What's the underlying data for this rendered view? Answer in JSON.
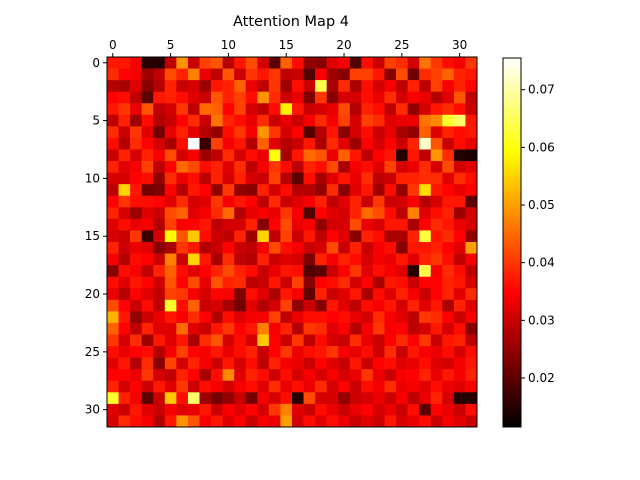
{
  "chart_data": {
    "type": "heatmap",
    "title": "Attention Map 4",
    "xlabel": "",
    "ylabel": "",
    "rows": 32,
    "cols": 32,
    "x_ticks": [
      0,
      5,
      10,
      15,
      20,
      25,
      30
    ],
    "y_ticks": [
      0,
      5,
      10,
      15,
      20,
      25,
      30
    ],
    "colormap": "hot",
    "colormap_stops": [
      "#000000",
      "#ff0000",
      "#ffff00",
      "#ffffff"
    ],
    "vmin": 0.0115,
    "vmax": 0.0755,
    "colorbar_ticks": [
      0.02,
      0.03,
      0.04,
      0.05,
      0.06,
      0.07
    ],
    "colorbar_tick_labels": [
      "0.02",
      "0.03",
      "0.04",
      "0.05",
      "0.06",
      "0.07"
    ],
    "values": [
      [
        0.037,
        0.037,
        0.034,
        0.015,
        0.015,
        0.029,
        0.049,
        0.03,
        0.041,
        0.043,
        0.028,
        0.037,
        0.042,
        0.031,
        0.02,
        0.044,
        0.036,
        0.025,
        0.024,
        0.032,
        0.034,
        0.019,
        0.036,
        0.03,
        0.041,
        0.039,
        0.031,
        0.046,
        0.04,
        0.036,
        0.034,
        0.04
      ],
      [
        0.039,
        0.035,
        0.034,
        0.026,
        0.029,
        0.042,
        0.038,
        0.047,
        0.033,
        0.029,
        0.043,
        0.03,
        0.04,
        0.037,
        0.04,
        0.029,
        0.03,
        0.019,
        0.034,
        0.026,
        0.024,
        0.041,
        0.041,
        0.037,
        0.024,
        0.042,
        0.022,
        0.039,
        0.041,
        0.044,
        0.038,
        0.037
      ],
      [
        0.028,
        0.027,
        0.032,
        0.024,
        0.028,
        0.038,
        0.03,
        0.031,
        0.026,
        0.037,
        0.038,
        0.044,
        0.033,
        0.029,
        0.04,
        0.026,
        0.036,
        0.03,
        0.064,
        0.027,
        0.039,
        0.027,
        0.036,
        0.031,
        0.034,
        0.029,
        0.038,
        0.029,
        0.041,
        0.034,
        0.038,
        0.035
      ],
      [
        0.035,
        0.036,
        0.029,
        0.02,
        0.037,
        0.038,
        0.036,
        0.032,
        0.03,
        0.043,
        0.038,
        0.041,
        0.036,
        0.049,
        0.039,
        0.03,
        0.033,
        0.023,
        0.04,
        0.024,
        0.031,
        0.031,
        0.036,
        0.033,
        0.039,
        0.031,
        0.034,
        0.033,
        0.028,
        0.032,
        0.043,
        0.029
      ],
      [
        0.037,
        0.04,
        0.033,
        0.043,
        0.029,
        0.031,
        0.04,
        0.029,
        0.045,
        0.044,
        0.035,
        0.041,
        0.031,
        0.029,
        0.036,
        0.058,
        0.037,
        0.03,
        0.031,
        0.033,
        0.042,
        0.028,
        0.038,
        0.036,
        0.029,
        0.039,
        0.025,
        0.031,
        0.037,
        0.039,
        0.036,
        0.03
      ],
      [
        0.029,
        0.038,
        0.026,
        0.036,
        0.028,
        0.03,
        0.035,
        0.039,
        0.03,
        0.046,
        0.038,
        0.036,
        0.033,
        0.039,
        0.03,
        0.033,
        0.03,
        0.034,
        0.039,
        0.034,
        0.041,
        0.031,
        0.041,
        0.039,
        0.032,
        0.033,
        0.033,
        0.046,
        0.048,
        0.062,
        0.066,
        0.037
      ],
      [
        0.039,
        0.03,
        0.04,
        0.032,
        0.022,
        0.033,
        0.038,
        0.032,
        0.028,
        0.025,
        0.036,
        0.04,
        0.034,
        0.049,
        0.04,
        0.031,
        0.035,
        0.019,
        0.028,
        0.037,
        0.024,
        0.031,
        0.036,
        0.03,
        0.033,
        0.027,
        0.025,
        0.044,
        0.032,
        0.038,
        0.036,
        0.037
      ],
      [
        0.036,
        0.028,
        0.039,
        0.035,
        0.031,
        0.027,
        0.036,
        0.076,
        0.017,
        0.041,
        0.034,
        0.037,
        0.028,
        0.044,
        0.032,
        0.028,
        0.03,
        0.037,
        0.027,
        0.039,
        0.032,
        0.026,
        0.035,
        0.031,
        0.035,
        0.03,
        0.038,
        0.072,
        0.043,
        0.03,
        0.036,
        0.033
      ],
      [
        0.03,
        0.038,
        0.031,
        0.038,
        0.034,
        0.042,
        0.031,
        0.034,
        0.026,
        0.029,
        0.039,
        0.031,
        0.036,
        0.033,
        0.06,
        0.027,
        0.037,
        0.045,
        0.043,
        0.033,
        0.044,
        0.037,
        0.029,
        0.035,
        0.037,
        0.015,
        0.037,
        0.029,
        0.049,
        0.039,
        0.015,
        0.014
      ],
      [
        0.038,
        0.032,
        0.034,
        0.041,
        0.029,
        0.035,
        0.045,
        0.042,
        0.036,
        0.038,
        0.032,
        0.039,
        0.029,
        0.034,
        0.04,
        0.036,
        0.029,
        0.038,
        0.036,
        0.042,
        0.027,
        0.034,
        0.036,
        0.032,
        0.041,
        0.031,
        0.033,
        0.039,
        0.031,
        0.042,
        0.031,
        0.032
      ],
      [
        0.031,
        0.031,
        0.035,
        0.036,
        0.025,
        0.039,
        0.033,
        0.036,
        0.029,
        0.038,
        0.031,
        0.038,
        0.031,
        0.03,
        0.041,
        0.028,
        0.02,
        0.036,
        0.027,
        0.032,
        0.037,
        0.033,
        0.039,
        0.029,
        0.03,
        0.038,
        0.038,
        0.039,
        0.039,
        0.032,
        0.039,
        0.036
      ],
      [
        0.029,
        0.055,
        0.037,
        0.022,
        0.023,
        0.035,
        0.028,
        0.037,
        0.035,
        0.025,
        0.04,
        0.025,
        0.024,
        0.038,
        0.031,
        0.036,
        0.028,
        0.028,
        0.025,
        0.039,
        0.024,
        0.032,
        0.037,
        0.026,
        0.036,
        0.025,
        0.04,
        0.056,
        0.037,
        0.035,
        0.033,
        0.035
      ],
      [
        0.035,
        0.04,
        0.036,
        0.036,
        0.035,
        0.032,
        0.039,
        0.031,
        0.032,
        0.04,
        0.034,
        0.037,
        0.035,
        0.029,
        0.039,
        0.03,
        0.032,
        0.034,
        0.038,
        0.029,
        0.032,
        0.038,
        0.03,
        0.04,
        0.03,
        0.031,
        0.034,
        0.028,
        0.031,
        0.037,
        0.037,
        0.02
      ],
      [
        0.038,
        0.031,
        0.026,
        0.032,
        0.03,
        0.042,
        0.044,
        0.032,
        0.034,
        0.039,
        0.045,
        0.028,
        0.033,
        0.034,
        0.033,
        0.04,
        0.034,
        0.019,
        0.035,
        0.032,
        0.031,
        0.038,
        0.045,
        0.042,
        0.036,
        0.029,
        0.047,
        0.032,
        0.036,
        0.038,
        0.026,
        0.031
      ],
      [
        0.032,
        0.036,
        0.033,
        0.034,
        0.028,
        0.041,
        0.034,
        0.035,
        0.037,
        0.029,
        0.031,
        0.031,
        0.038,
        0.024,
        0.035,
        0.042,
        0.033,
        0.034,
        0.025,
        0.031,
        0.031,
        0.042,
        0.033,
        0.031,
        0.037,
        0.037,
        0.027,
        0.035,
        0.039,
        0.037,
        0.033,
        0.031
      ],
      [
        0.031,
        0.03,
        0.04,
        0.017,
        0.031,
        0.059,
        0.043,
        0.054,
        0.036,
        0.03,
        0.029,
        0.038,
        0.026,
        0.055,
        0.029,
        0.041,
        0.03,
        0.037,
        0.029,
        0.035,
        0.032,
        0.024,
        0.038,
        0.036,
        0.027,
        0.027,
        0.038,
        0.063,
        0.037,
        0.039,
        0.035,
        0.025
      ],
      [
        0.038,
        0.03,
        0.033,
        0.032,
        0.024,
        0.027,
        0.04,
        0.037,
        0.028,
        0.03,
        0.035,
        0.03,
        0.029,
        0.034,
        0.042,
        0.036,
        0.034,
        0.03,
        0.031,
        0.042,
        0.03,
        0.038,
        0.03,
        0.034,
        0.036,
        0.024,
        0.037,
        0.037,
        0.038,
        0.035,
        0.032,
        0.05
      ],
      [
        0.034,
        0.028,
        0.036,
        0.035,
        0.03,
        0.047,
        0.03,
        0.055,
        0.037,
        0.027,
        0.039,
        0.029,
        0.028,
        0.038,
        0.03,
        0.032,
        0.031,
        0.023,
        0.038,
        0.034,
        0.038,
        0.036,
        0.031,
        0.034,
        0.033,
        0.037,
        0.032,
        0.038,
        0.04,
        0.036,
        0.029,
        0.034
      ],
      [
        0.024,
        0.036,
        0.034,
        0.029,
        0.038,
        0.044,
        0.036,
        0.032,
        0.035,
        0.038,
        0.042,
        0.038,
        0.036,
        0.03,
        0.033,
        0.037,
        0.036,
        0.019,
        0.02,
        0.03,
        0.035,
        0.04,
        0.032,
        0.036,
        0.034,
        0.032,
        0.015,
        0.064,
        0.034,
        0.039,
        0.036,
        0.029
      ],
      [
        0.036,
        0.032,
        0.037,
        0.035,
        0.03,
        0.043,
        0.035,
        0.042,
        0.033,
        0.043,
        0.038,
        0.039,
        0.029,
        0.03,
        0.037,
        0.03,
        0.041,
        0.024,
        0.035,
        0.036,
        0.039,
        0.031,
        0.035,
        0.027,
        0.037,
        0.036,
        0.03,
        0.035,
        0.035,
        0.038,
        0.037,
        0.031
      ],
      [
        0.033,
        0.028,
        0.035,
        0.032,
        0.029,
        0.041,
        0.04,
        0.034,
        0.031,
        0.035,
        0.035,
        0.023,
        0.036,
        0.032,
        0.027,
        0.037,
        0.034,
        0.02,
        0.038,
        0.03,
        0.032,
        0.037,
        0.027,
        0.036,
        0.032,
        0.038,
        0.034,
        0.03,
        0.035,
        0.038,
        0.032,
        0.039
      ],
      [
        0.042,
        0.035,
        0.03,
        0.036,
        0.029,
        0.062,
        0.036,
        0.044,
        0.03,
        0.031,
        0.027,
        0.022,
        0.032,
        0.028,
        0.031,
        0.041,
        0.025,
        0.03,
        0.024,
        0.037,
        0.032,
        0.029,
        0.036,
        0.034,
        0.037,
        0.031,
        0.038,
        0.032,
        0.037,
        0.027,
        0.038,
        0.032
      ],
      [
        0.052,
        0.037,
        0.025,
        0.03,
        0.033,
        0.037,
        0.034,
        0.039,
        0.035,
        0.028,
        0.036,
        0.032,
        0.034,
        0.034,
        0.041,
        0.029,
        0.033,
        0.036,
        0.036,
        0.035,
        0.036,
        0.033,
        0.031,
        0.039,
        0.034,
        0.032,
        0.029,
        0.04,
        0.039,
        0.035,
        0.03,
        0.034
      ],
      [
        0.044,
        0.035,
        0.029,
        0.038,
        0.032,
        0.032,
        0.045,
        0.032,
        0.03,
        0.037,
        0.04,
        0.035,
        0.037,
        0.047,
        0.034,
        0.038,
        0.028,
        0.04,
        0.039,
        0.032,
        0.035,
        0.028,
        0.034,
        0.04,
        0.034,
        0.035,
        0.029,
        0.031,
        0.037,
        0.031,
        0.036,
        0.024
      ],
      [
        0.04,
        0.031,
        0.039,
        0.026,
        0.037,
        0.032,
        0.037,
        0.027,
        0.039,
        0.043,
        0.031,
        0.036,
        0.031,
        0.054,
        0.035,
        0.03,
        0.04,
        0.029,
        0.036,
        0.031,
        0.03,
        0.039,
        0.033,
        0.03,
        0.035,
        0.039,
        0.035,
        0.04,
        0.03,
        0.037,
        0.038,
        0.029
      ],
      [
        0.036,
        0.033,
        0.035,
        0.036,
        0.028,
        0.034,
        0.041,
        0.035,
        0.034,
        0.037,
        0.033,
        0.036,
        0.038,
        0.03,
        0.035,
        0.04,
        0.033,
        0.036,
        0.037,
        0.04,
        0.034,
        0.033,
        0.036,
        0.03,
        0.039,
        0.03,
        0.037,
        0.034,
        0.033,
        0.036,
        0.031,
        0.036
      ],
      [
        0.032,
        0.037,
        0.028,
        0.039,
        0.024,
        0.041,
        0.031,
        0.038,
        0.034,
        0.03,
        0.037,
        0.031,
        0.036,
        0.029,
        0.038,
        0.034,
        0.033,
        0.03,
        0.035,
        0.032,
        0.03,
        0.037,
        0.03,
        0.035,
        0.036,
        0.032,
        0.033,
        0.036,
        0.032,
        0.031,
        0.034,
        0.037
      ],
      [
        0.035,
        0.035,
        0.033,
        0.04,
        0.031,
        0.029,
        0.038,
        0.035,
        0.027,
        0.036,
        0.048,
        0.032,
        0.038,
        0.036,
        0.03,
        0.036,
        0.031,
        0.034,
        0.031,
        0.034,
        0.031,
        0.033,
        0.04,
        0.033,
        0.03,
        0.034,
        0.035,
        0.038,
        0.033,
        0.037,
        0.034,
        0.038
      ],
      [
        0.038,
        0.031,
        0.035,
        0.03,
        0.037,
        0.032,
        0.04,
        0.03,
        0.036,
        0.034,
        0.031,
        0.034,
        0.036,
        0.032,
        0.039,
        0.033,
        0.036,
        0.033,
        0.039,
        0.031,
        0.035,
        0.03,
        0.036,
        0.034,
        0.039,
        0.033,
        0.034,
        0.032,
        0.036,
        0.033,
        0.032,
        0.034
      ],
      [
        0.062,
        0.038,
        0.034,
        0.02,
        0.03,
        0.054,
        0.036,
        0.066,
        0.026,
        0.022,
        0.025,
        0.03,
        0.022,
        0.034,
        0.031,
        0.036,
        0.015,
        0.042,
        0.031,
        0.031,
        0.025,
        0.03,
        0.031,
        0.033,
        0.03,
        0.034,
        0.029,
        0.033,
        0.038,
        0.031,
        0.015,
        0.015
      ],
      [
        0.032,
        0.03,
        0.037,
        0.032,
        0.03,
        0.034,
        0.032,
        0.033,
        0.037,
        0.03,
        0.034,
        0.032,
        0.035,
        0.031,
        0.04,
        0.047,
        0.032,
        0.03,
        0.036,
        0.033,
        0.03,
        0.033,
        0.035,
        0.031,
        0.033,
        0.03,
        0.036,
        0.02,
        0.035,
        0.033,
        0.03,
        0.036
      ],
      [
        0.031,
        0.039,
        0.036,
        0.034,
        0.028,
        0.037,
        0.049,
        0.043,
        0.034,
        0.037,
        0.032,
        0.035,
        0.03,
        0.034,
        0.033,
        0.05,
        0.031,
        0.036,
        0.032,
        0.036,
        0.033,
        0.03,
        0.032,
        0.03,
        0.037,
        0.031,
        0.033,
        0.036,
        0.03,
        0.034,
        0.032,
        0.03
      ]
    ]
  }
}
